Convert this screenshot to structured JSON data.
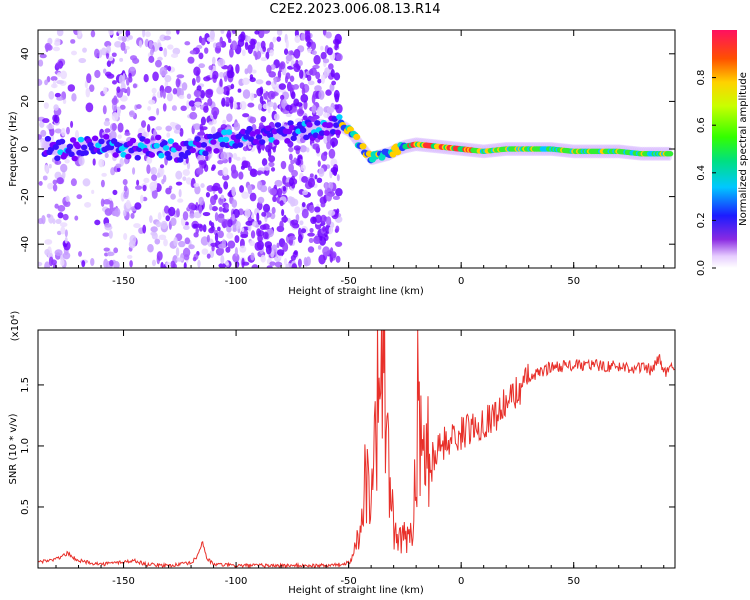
{
  "title": "C2E2.2023.006.08.13.R14",
  "chart_data": [
    {
      "type": "heatmap",
      "xlabel": "Height of straight line (km)",
      "ylabel": "Frequency (Hz)",
      "xlim": [
        -188,
        95
      ],
      "ylim": [
        -50,
        50
      ],
      "xticks": [
        "-150",
        "-100",
        "-50",
        "0",
        "50"
      ],
      "xtick_values": [
        -150,
        -100,
        -50,
        0,
        50
      ],
      "yticks": [
        "-40",
        "-20",
        "0",
        "20",
        "40"
      ],
      "ytick_values": [
        -40,
        -20,
        0,
        20,
        40
      ],
      "colorbar": {
        "label": "Normalized spectral amplitude",
        "range": [
          0,
          1
        ],
        "ticks": [
          "0.0",
          "0.2",
          "0.4",
          "0.6",
          "0.8"
        ],
        "tick_values": [
          0.0,
          0.2,
          0.4,
          0.6,
          0.8
        ]
      },
      "ridge": {
        "x": [
          -185,
          -175,
          -165,
          -155,
          -145,
          -135,
          -125,
          -120,
          -54,
          -50,
          -45,
          -40,
          -36,
          -32,
          -28,
          -25,
          -20,
          -10,
          0,
          10,
          20,
          30,
          40,
          50,
          60,
          70,
          80,
          90,
          95
        ],
        "y": [
          1,
          -1,
          2,
          1,
          0,
          1,
          -1,
          1,
          10,
          8,
          2,
          -4,
          -3,
          -2,
          0,
          1,
          2,
          1,
          0,
          -1,
          0,
          0,
          0,
          -1,
          -1,
          -1,
          -2,
          -2,
          -2
        ]
      }
    },
    {
      "type": "line",
      "xlabel": "Height of straight line (km)",
      "ylabel": "SNR (10 * v/v)",
      "yscale_label": "(x10⁴)",
      "xlim": [
        -188,
        95
      ],
      "ylim": [
        0,
        1.95
      ],
      "xticks": [
        "-150",
        "-100",
        "-50",
        "0",
        "50"
      ],
      "xtick_values": [
        -150,
        -100,
        -50,
        0,
        50
      ],
      "yticks": [
        "0.5",
        "1.0",
        "1.5"
      ],
      "ytick_values": [
        0.5,
        1.0,
        1.5
      ],
      "color": "#e8302a",
      "series": [
        {
          "x": [
            -188,
            -180,
            -175,
            -170,
            -160,
            -150,
            -145,
            -140,
            -130,
            -120,
            -117,
            -115,
            -113,
            -110,
            -100,
            -90,
            -80,
            -70,
            -60,
            -52,
            -48,
            -45,
            -42,
            -40,
            -38,
            -36,
            -35,
            -33,
            -31,
            -30,
            -28,
            -25,
            -22,
            -20,
            -19,
            -18,
            -17,
            -15,
            -13,
            -10,
            -5,
            0,
            5,
            10,
            15,
            20,
            25,
            30,
            35,
            40,
            50,
            60,
            70,
            80,
            85,
            88,
            90,
            95
          ],
          "y": [
            0.05,
            0.07,
            0.12,
            0.06,
            0.03,
            0.05,
            0.06,
            0.03,
            0.02,
            0.04,
            0.1,
            0.22,
            0.08,
            0.03,
            0.02,
            0.02,
            0.02,
            0.02,
            0.02,
            0.03,
            0.1,
            0.35,
            0.8,
            0.6,
            1.3,
            1.5,
            1.95,
            0.9,
            0.6,
            0.3,
            0.2,
            0.25,
            0.3,
            0.9,
            1.45,
            0.95,
            0.8,
            1.1,
            0.85,
            1.0,
            1.05,
            1.1,
            1.15,
            1.2,
            1.25,
            1.35,
            1.45,
            1.55,
            1.6,
            1.65,
            1.66,
            1.66,
            1.65,
            1.64,
            1.62,
            1.72,
            1.6,
            1.65
          ]
        }
      ]
    }
  ]
}
